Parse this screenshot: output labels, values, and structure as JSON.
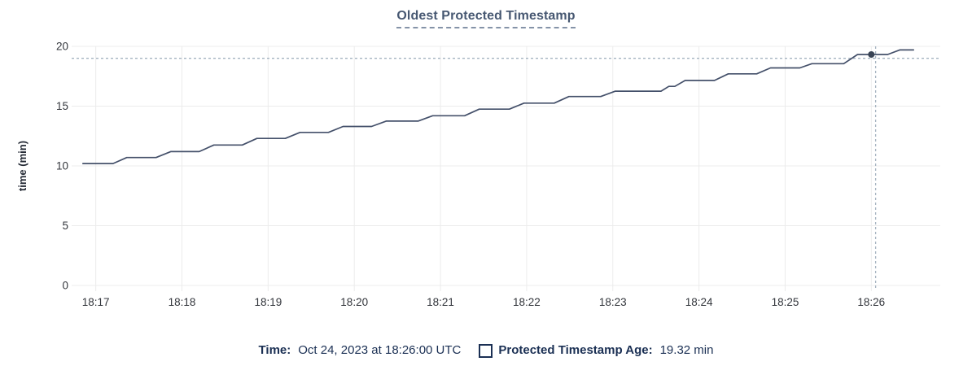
{
  "title": "Oldest Protected Timestamp",
  "legend": {
    "time_label": "Time:",
    "time_value": "Oct 24, 2023 at 18:26:00 UTC",
    "series_label": "Protected Timestamp Age:",
    "series_value": "19.32 min"
  },
  "colors": {
    "title": "#475872",
    "title_underline": "#8593a8",
    "legend_text": "#1b3054",
    "axis_text": "#33363c",
    "axis_title": "#242a35",
    "grid": "#ececec",
    "line": "#44506a",
    "dot": "#394455",
    "crosshair": "#a4b2c0"
  },
  "chart_data": {
    "type": "line",
    "title": "Oldest Protected Timestamp",
    "xlabel": "",
    "ylabel": "time (min)",
    "ylim": [
      0,
      20
    ],
    "yticks": [
      0,
      5,
      10,
      15,
      20
    ],
    "xticks": [
      "18:17",
      "18:18",
      "18:19",
      "18:20",
      "18:21",
      "18:22",
      "18:23",
      "18:24",
      "18:25",
      "18:26"
    ],
    "x_unit": "minutes after 18:17:00 UTC",
    "xlim_minutes": [
      -0.28,
      9.8
    ],
    "grid": true,
    "legend_position": "bottom",
    "series": [
      {
        "name": "Protected Timestamp Age",
        "unit": "min",
        "points": [
          [
            -0.15,
            10.2
          ],
          [
            0.2,
            10.2
          ],
          [
            0.36,
            10.7
          ],
          [
            0.7,
            10.7
          ],
          [
            0.87,
            11.2
          ],
          [
            1.2,
            11.2
          ],
          [
            1.37,
            11.75
          ],
          [
            1.7,
            11.75
          ],
          [
            1.87,
            12.3
          ],
          [
            2.2,
            12.3
          ],
          [
            2.37,
            12.8
          ],
          [
            2.7,
            12.8
          ],
          [
            2.87,
            13.3
          ],
          [
            3.2,
            13.3
          ],
          [
            3.37,
            13.75
          ],
          [
            3.74,
            13.75
          ],
          [
            3.91,
            14.2
          ],
          [
            4.28,
            14.2
          ],
          [
            4.45,
            14.75
          ],
          [
            4.8,
            14.75
          ],
          [
            4.97,
            15.25
          ],
          [
            5.32,
            15.25
          ],
          [
            5.49,
            15.8
          ],
          [
            5.86,
            15.8
          ],
          [
            6.03,
            16.25
          ],
          [
            6.56,
            16.25
          ],
          [
            6.65,
            16.65
          ],
          [
            6.72,
            16.65
          ],
          [
            6.84,
            17.15
          ],
          [
            7.18,
            17.15
          ],
          [
            7.34,
            17.7
          ],
          [
            7.67,
            17.7
          ],
          [
            7.83,
            18.2
          ],
          [
            8.17,
            18.2
          ],
          [
            8.31,
            18.55
          ],
          [
            8.68,
            18.55
          ],
          [
            8.84,
            19.32
          ],
          [
            9.19,
            19.32
          ],
          [
            9.33,
            19.7
          ],
          [
            9.49,
            19.7
          ]
        ]
      }
    ],
    "hover_point": {
      "time": "18:26:00",
      "x_minutes": 9.0,
      "value_min": 19.32
    },
    "crosshair": {
      "x_minutes": 9.05,
      "y_min": 19.0
    }
  }
}
